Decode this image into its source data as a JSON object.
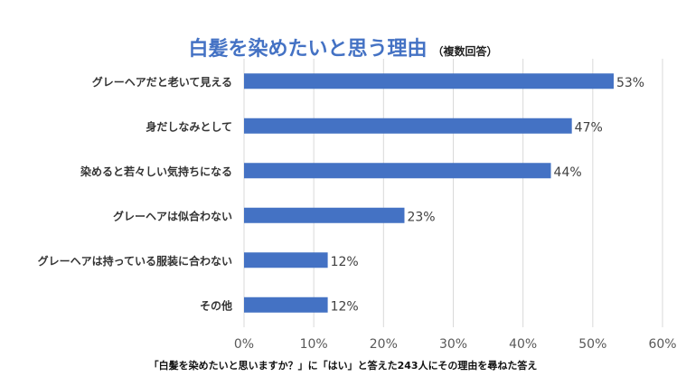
{
  "title": "白髪を染めたいと思う理由",
  "subtitle": "（複数回答）",
  "footnote": "「白髪を染めたいと思いますか？」に「はい」と答えた243人にその理由を尋ねた答え",
  "colors": {
    "bar": "#4472c4",
    "title": "#4472c4",
    "grid": "#d9d9d9",
    "text": "#404040"
  },
  "chart_data": {
    "type": "bar",
    "orientation": "horizontal",
    "categories": [
      "グレーヘアだと老いて見える",
      "身だしなみとして",
      "染めると若々しい気持ちになる",
      "グレーヘアは似合わない",
      "グレーヘアは持っている服装に合わない",
      "その他"
    ],
    "values": [
      53,
      47,
      44,
      23,
      12,
      12
    ],
    "value_labels": [
      "53%",
      "47%",
      "44%",
      "23%",
      "12%",
      "12%"
    ],
    "xlim": [
      0,
      60
    ],
    "xticks": [
      0,
      10,
      20,
      30,
      40,
      50,
      60
    ],
    "xtick_labels": [
      "0%",
      "10%",
      "20%",
      "30%",
      "40%",
      "50%",
      "60%"
    ],
    "grid": true,
    "legend": false
  }
}
